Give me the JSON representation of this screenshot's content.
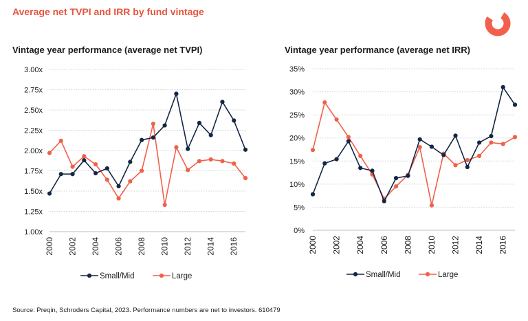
{
  "header": {
    "title": "Average net TVPI and IRR by fund vintage"
  },
  "colors": {
    "small_mid": "#142744",
    "large": "#f0604a",
    "grid": "#cfcfcf",
    "title": "#e8533c"
  },
  "chart_data": [
    {
      "type": "line",
      "title": "Vintage year performance (average net TVPI)",
      "x": [
        2000,
        2001,
        2002,
        2003,
        2004,
        2005,
        2006,
        2007,
        2008,
        2009,
        2010,
        2011,
        2012,
        2013,
        2014,
        2015,
        2016,
        2017
      ],
      "x_ticks": [
        "2000",
        "2002",
        "2004",
        "2006",
        "2008",
        "2010",
        "2012",
        "2014",
        "2016"
      ],
      "ylim": [
        1.0,
        3.0
      ],
      "y_ticks": [
        1.0,
        1.25,
        1.5,
        1.75,
        2.0,
        2.25,
        2.5,
        2.75,
        3.0
      ],
      "y_tick_labels": [
        "1.00x",
        "1.25x",
        "1.50x",
        "1.75x",
        "2.00x",
        "2.25x",
        "2.50x",
        "2.75x",
        "3.00x"
      ],
      "grid": true,
      "legend_position": "bottom",
      "series": [
        {
          "name": "Small/Mid",
          "color": "#142744",
          "values": [
            1.47,
            1.71,
            1.71,
            1.88,
            1.72,
            1.78,
            1.56,
            1.86,
            2.13,
            2.16,
            2.31,
            2.7,
            2.02,
            2.34,
            2.19,
            2.6,
            2.37,
            2.01
          ]
        },
        {
          "name": "Large",
          "color": "#f0604a",
          "values": [
            1.97,
            2.12,
            1.8,
            1.93,
            1.83,
            1.64,
            1.41,
            1.62,
            1.75,
            2.33,
            1.33,
            2.04,
            1.76,
            1.87,
            1.89,
            1.87,
            1.84,
            1.66
          ]
        }
      ]
    },
    {
      "type": "line",
      "title": "Vintage year performance (average net IRR)",
      "x": [
        2000,
        2001,
        2002,
        2003,
        2004,
        2005,
        2006,
        2007,
        2008,
        2009,
        2010,
        2011,
        2012,
        2013,
        2014,
        2015,
        2016,
        2017
      ],
      "x_ticks": [
        "2000",
        "2002",
        "2004",
        "2006",
        "2008",
        "2010",
        "2012",
        "2014",
        "2016"
      ],
      "ylim": [
        0,
        35
      ],
      "y_ticks": [
        0,
        5,
        10,
        15,
        20,
        25,
        30,
        35
      ],
      "y_tick_labels": [
        "0%",
        "5%",
        "10%",
        "15%",
        "20%",
        "25%",
        "30%",
        "35%"
      ],
      "grid": true,
      "legend_position": "bottom",
      "series": [
        {
          "name": "Small/Mid",
          "color": "#142744",
          "values": [
            7.8,
            14.5,
            15.4,
            19.3,
            13.5,
            12.9,
            6.3,
            11.3,
            11.8,
            19.7,
            18.1,
            16.3,
            20.5,
            13.7,
            19.0,
            20.4,
            31.0,
            27.2
          ]
        },
        {
          "name": "Large",
          "color": "#f0604a",
          "values": [
            17.4,
            27.7,
            24.0,
            20.2,
            16.1,
            12.1,
            6.8,
            9.5,
            12.0,
            18.0,
            5.4,
            16.6,
            14.1,
            15.2,
            16.1,
            19.0,
            18.7,
            20.2
          ]
        }
      ]
    }
  ],
  "footer": {
    "source": "Source: Preqin, Schroders Capital, 2023. Performance numbers are net to investors. 610479"
  }
}
